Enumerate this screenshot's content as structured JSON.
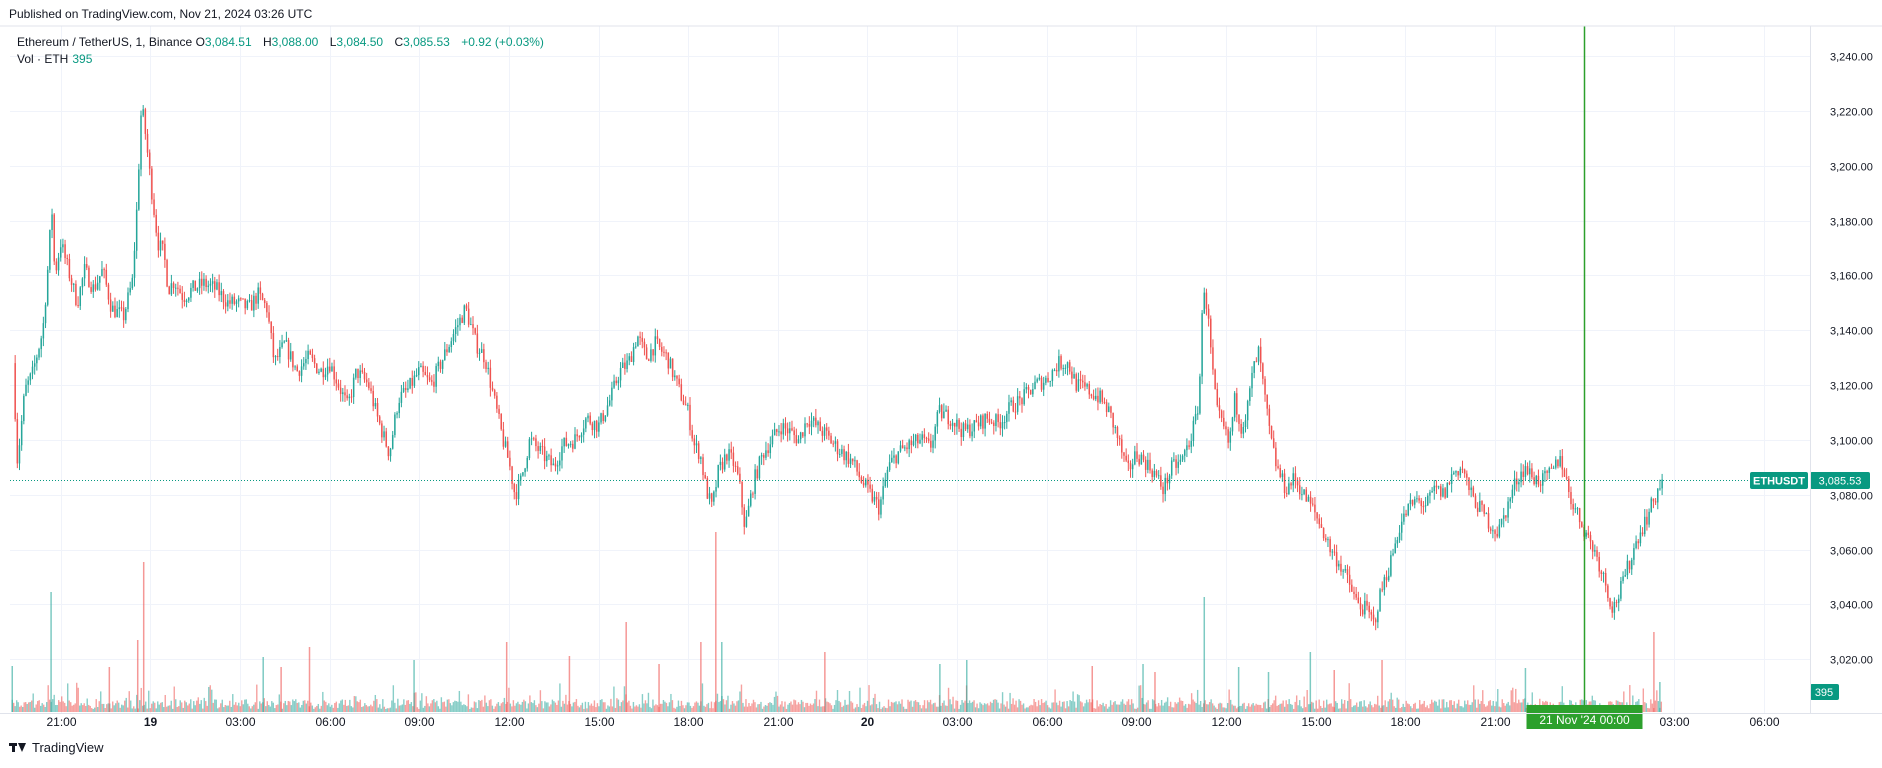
{
  "header": {
    "published": "Published on TradingView.com, Nov 21, 2024 03:26 UTC"
  },
  "legend": {
    "symbol": "Ethereum / TetherUS, 1, Binance",
    "open_label": "O",
    "open": "3,084.51",
    "high_label": "H",
    "high": "3,088.00",
    "low_label": "L",
    "low": "3,084.50",
    "close_label": "C",
    "close": "3,085.53",
    "change": "+0.92 (+0.03%)",
    "volume_label": "Vol · ETH",
    "volume": "395"
  },
  "price_tag": {
    "symbol": "ETHUSDT",
    "price": "3,085.53",
    "volume": "395"
  },
  "crosshair": {
    "date_label": "21 Nov '24",
    "time_label": "00:00"
  },
  "colors": {
    "up": "#26a69a",
    "down": "#ef5350",
    "accent": "#089981",
    "crosshair": "#2ca02c",
    "grid": "#f0f3fa"
  },
  "footer": {
    "brand": "TradingView",
    "logo_icon": "tradingview-logo-icon"
  },
  "chart_data": {
    "type": "candlestick",
    "title": "Ethereum / TetherUS, 1, Binance",
    "xlabel": "",
    "ylabel": "",
    "interval_minutes": 1,
    "ylim": [
      3004,
      3251
    ],
    "y_ticks": [
      "3,020.00",
      "3,040.00",
      "3,060.00",
      "3,080.00",
      "3,100.00",
      "3,120.00",
      "3,140.00",
      "3,160.00",
      "3,180.00",
      "3,200.00",
      "3,220.00",
      "3,240.00"
    ],
    "y_tick_values": [
      3020,
      3040,
      3060,
      3080,
      3100,
      3120,
      3140,
      3160,
      3180,
      3200,
      3220,
      3240
    ],
    "x_ticks": [
      "21:00",
      "19",
      "03:00",
      "06:00",
      "09:00",
      "12:00",
      "15:00",
      "18:00",
      "21:00",
      "20",
      "03:00",
      "06:00",
      "09:00",
      "12:00",
      "15:00",
      "18:00",
      "21:00",
      "21 Nov '24",
      "03:00",
      "06:00"
    ],
    "x_tick_hours": [
      0,
      3,
      6,
      9,
      12,
      15,
      18,
      21,
      24,
      27,
      30,
      33,
      36,
      39,
      42,
      45,
      48,
      51,
      54,
      57
    ],
    "x_tick_bold": [
      false,
      true,
      false,
      false,
      false,
      false,
      false,
      false,
      false,
      true,
      false,
      false,
      false,
      false,
      false,
      false,
      false,
      true,
      false,
      false
    ],
    "x_range_hours": [
      -1.7,
      58.55
    ],
    "grid": true,
    "last_price": 3085.53,
    "last_volume": 395,
    "price_path": [
      [
        -1.6,
        3128
      ],
      [
        -1.45,
        3092
      ],
      [
        -1.2,
        3118
      ],
      [
        -0.95,
        3124
      ],
      [
        -0.6,
        3140
      ],
      [
        -0.45,
        3160
      ],
      [
        -0.3,
        3185
      ],
      [
        -0.2,
        3160
      ],
      [
        0.0,
        3172
      ],
      [
        0.3,
        3160
      ],
      [
        0.55,
        3150
      ],
      [
        0.8,
        3162
      ],
      [
        1.1,
        3155
      ],
      [
        1.4,
        3162
      ],
      [
        1.7,
        3148
      ],
      [
        2.1,
        3145
      ],
      [
        2.4,
        3158
      ],
      [
        2.55,
        3185
      ],
      [
        2.7,
        3222
      ],
      [
        2.8,
        3215
      ],
      [
        3.0,
        3195
      ],
      [
        3.25,
        3172
      ],
      [
        3.45,
        3168
      ],
      [
        3.6,
        3155
      ],
      [
        3.8,
        3158
      ],
      [
        4.1,
        3152
      ],
      [
        4.4,
        3155
      ],
      [
        4.8,
        3157
      ],
      [
        5.2,
        3155
      ],
      [
        5.6,
        3150
      ],
      [
        5.9,
        3150
      ],
      [
        6.3,
        3148
      ],
      [
        6.6,
        3153
      ],
      [
        6.9,
        3148
      ],
      [
        7.15,
        3128
      ],
      [
        7.5,
        3135
      ],
      [
        7.9,
        3125
      ],
      [
        8.3,
        3130
      ],
      [
        8.7,
        3125
      ],
      [
        9.0,
        3128
      ],
      [
        9.3,
        3120
      ],
      [
        9.6,
        3112
      ],
      [
        9.9,
        3125
      ],
      [
        10.3,
        3120
      ],
      [
        10.6,
        3108
      ],
      [
        11.0,
        3095
      ],
      [
        11.3,
        3115
      ],
      [
        11.6,
        3118
      ],
      [
        12.0,
        3125
      ],
      [
        12.4,
        3120
      ],
      [
        12.8,
        3130
      ],
      [
        13.2,
        3140
      ],
      [
        13.55,
        3148
      ],
      [
        13.9,
        3135
      ],
      [
        14.2,
        3130
      ],
      [
        14.5,
        3115
      ],
      [
        14.8,
        3100
      ],
      [
        15.0,
        3092
      ],
      [
        15.2,
        3080
      ],
      [
        15.4,
        3085
      ],
      [
        15.7,
        3100
      ],
      [
        16.1,
        3095
      ],
      [
        16.5,
        3090
      ],
      [
        16.8,
        3098
      ],
      [
        17.2,
        3100
      ],
      [
        17.6,
        3108
      ],
      [
        18.0,
        3105
      ],
      [
        18.4,
        3115
      ],
      [
        18.7,
        3125
      ],
      [
        19.0,
        3128
      ],
      [
        19.3,
        3138
      ],
      [
        19.6,
        3130
      ],
      [
        19.9,
        3135
      ],
      [
        20.3,
        3130
      ],
      [
        20.7,
        3118
      ],
      [
        21.0,
        3110
      ],
      [
        21.2,
        3098
      ],
      [
        21.4,
        3095
      ],
      [
        21.6,
        3082
      ],
      [
        21.8,
        3075
      ],
      [
        22.0,
        3088
      ],
      [
        22.3,
        3095
      ],
      [
        22.5,
        3092
      ],
      [
        22.7,
        3085
      ],
      [
        22.9,
        3068
      ],
      [
        23.2,
        3085
      ],
      [
        23.5,
        3095
      ],
      [
        23.8,
        3100
      ],
      [
        24.1,
        3105
      ],
      [
        24.4,
        3103
      ],
      [
        24.7,
        3100
      ],
      [
        25.0,
        3108
      ],
      [
        25.3,
        3105
      ],
      [
        25.6,
        3102
      ],
      [
        25.9,
        3098
      ],
      [
        26.2,
        3095
      ],
      [
        26.5,
        3092
      ],
      [
        26.8,
        3085
      ],
      [
        27.1,
        3080
      ],
      [
        27.4,
        3075
      ],
      [
        27.7,
        3090
      ],
      [
        28.0,
        3095
      ],
      [
        28.4,
        3098
      ],
      [
        28.8,
        3100
      ],
      [
        29.1,
        3097
      ],
      [
        29.4,
        3110
      ],
      [
        29.8,
        3108
      ],
      [
        30.2,
        3103
      ],
      [
        30.6,
        3105
      ],
      [
        31.0,
        3108
      ],
      [
        31.4,
        3106
      ],
      [
        31.8,
        3112
      ],
      [
        32.2,
        3115
      ],
      [
        32.6,
        3120
      ],
      [
        33.0,
        3122
      ],
      [
        33.4,
        3128
      ],
      [
        33.7,
        3128
      ],
      [
        34.0,
        3120
      ],
      [
        34.4,
        3118
      ],
      [
        34.8,
        3115
      ],
      [
        35.1,
        3110
      ],
      [
        35.4,
        3100
      ],
      [
        35.7,
        3088
      ],
      [
        36.0,
        3095
      ],
      [
        36.3,
        3092
      ],
      [
        36.6,
        3088
      ],
      [
        36.9,
        3082
      ],
      [
        37.2,
        3090
      ],
      [
        37.5,
        3092
      ],
      [
        37.8,
        3100
      ],
      [
        38.0,
        3108
      ],
      [
        38.1,
        3115
      ],
      [
        38.25,
        3158
      ],
      [
        38.4,
        3145
      ],
      [
        38.55,
        3125
      ],
      [
        38.7,
        3110
      ],
      [
        38.9,
        3105
      ],
      [
        39.1,
        3098
      ],
      [
        39.3,
        3115
      ],
      [
        39.5,
        3105
      ],
      [
        39.7,
        3110
      ],
      [
        39.9,
        3125
      ],
      [
        40.1,
        3132
      ],
      [
        40.3,
        3115
      ],
      [
        40.5,
        3100
      ],
      [
        40.7,
        3090
      ],
      [
        41.0,
        3082
      ],
      [
        41.3,
        3086
      ],
      [
        41.6,
        3080
      ],
      [
        41.9,
        3075
      ],
      [
        42.2,
        3068
      ],
      [
        42.5,
        3060
      ],
      [
        42.8,
        3055
      ],
      [
        43.1,
        3048
      ],
      [
        43.4,
        3040
      ],
      [
        43.7,
        3038
      ],
      [
        43.95,
        3033
      ],
      [
        44.2,
        3045
      ],
      [
        44.5,
        3055
      ],
      [
        44.8,
        3068
      ],
      [
        45.1,
        3075
      ],
      [
        45.4,
        3078
      ],
      [
        45.7,
        3076
      ],
      [
        46.0,
        3082
      ],
      [
        46.3,
        3080
      ],
      [
        46.6,
        3088
      ],
      [
        46.9,
        3090
      ],
      [
        47.2,
        3080
      ],
      [
        47.5,
        3075
      ],
      [
        47.8,
        3070
      ],
      [
        48.1,
        3066
      ],
      [
        48.4,
        3075
      ],
      [
        48.7,
        3085
      ],
      [
        49.0,
        3090
      ],
      [
        49.3,
        3086
      ],
      [
        49.6,
        3085
      ],
      [
        49.9,
        3088
      ],
      [
        50.2,
        3094
      ],
      [
        50.5,
        3080
      ],
      [
        50.8,
        3072
      ],
      [
        51.1,
        3065
      ],
      [
        51.4,
        3058
      ],
      [
        51.7,
        3048
      ],
      [
        51.95,
        3038
      ],
      [
        52.2,
        3045
      ],
      [
        52.5,
        3055
      ],
      [
        52.8,
        3065
      ],
      [
        53.1,
        3072
      ],
      [
        53.4,
        3080
      ],
      [
        53.6,
        3085.53
      ]
    ],
    "volume_spikes": [
      [
        -1.65,
        46
      ],
      [
        -0.35,
        120
      ],
      [
        1.6,
        45
      ],
      [
        2.55,
        72
      ],
      [
        2.75,
        150
      ],
      [
        6.75,
        55
      ],
      [
        7.35,
        45
      ],
      [
        8.3,
        65
      ],
      [
        11.8,
        52
      ],
      [
        14.9,
        70
      ],
      [
        17.0,
        56
      ],
      [
        18.9,
        90
      ],
      [
        20.0,
        48
      ],
      [
        21.4,
        70
      ],
      [
        21.9,
        180
      ],
      [
        22.1,
        70
      ],
      [
        25.55,
        60
      ],
      [
        29.4,
        48
      ],
      [
        30.3,
        52
      ],
      [
        34.5,
        46
      ],
      [
        36.2,
        48
      ],
      [
        36.6,
        40
      ],
      [
        38.25,
        115
      ],
      [
        39.4,
        45
      ],
      [
        40.4,
        40
      ],
      [
        41.8,
        60
      ],
      [
        42.6,
        42
      ],
      [
        44.2,
        52
      ],
      [
        49.0,
        44
      ],
      [
        53.3,
        80
      ],
      [
        53.5,
        30
      ]
    ]
  }
}
